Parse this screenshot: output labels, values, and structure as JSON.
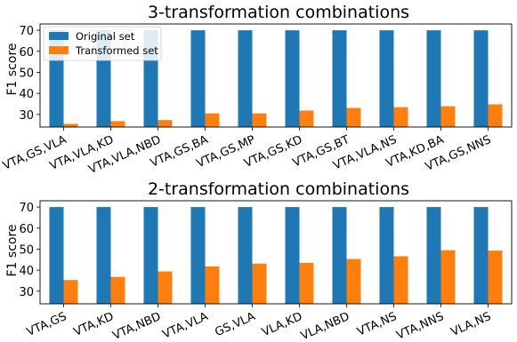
{
  "chart_data": [
    {
      "type": "bar",
      "title": "3-transformation combinations",
      "ylabel": "F1 score",
      "xlabel": "",
      "ylim": [
        24,
        73
      ],
      "yticks": [
        30,
        40,
        50,
        60,
        70
      ],
      "categories": [
        "VTA,GS,VLA",
        "VTA,VLA,KD",
        "VTA,VLA,NBD",
        "VTA,GS,BA",
        "VTA,GS,MP",
        "VTA,GS,KD",
        "VTA,GS,BT",
        "VTA,VLA,NS",
        "VTA,KD,BA",
        "VTA,GS,NNS"
      ],
      "series": [
        {
          "name": "Original set",
          "color": "#1f77b4",
          "values": [
            70,
            70,
            70,
            70,
            70,
            70,
            70,
            70,
            70,
            70
          ]
        },
        {
          "name": "Transformed set",
          "color": "#ff7f0e",
          "values": [
            25.5,
            26.8,
            27.3,
            30.5,
            30.5,
            31.8,
            33.1,
            33.4,
            33.9,
            34.8
          ]
        }
      ],
      "legend": {
        "position": "top-left",
        "entries": [
          "Original set",
          "Transformed set"
        ]
      },
      "grid": false
    },
    {
      "type": "bar",
      "title": "2-transformation combinations",
      "ylabel": "F1 score",
      "xlabel": "",
      "ylim": [
        24,
        73
      ],
      "yticks": [
        30,
        40,
        50,
        60,
        70
      ],
      "categories": [
        "VTA,GS",
        "VTA,KD",
        "VTA,NBD",
        "VTA,VLA",
        "GS,VLA",
        "VLA,KD",
        "VLA,NBD",
        "VTA,NS",
        "VTA,NNS",
        "VLA,NS"
      ],
      "series": [
        {
          "name": "Original set",
          "color": "#1f77b4",
          "values": [
            70,
            70,
            70,
            70,
            70,
            70,
            70,
            70,
            70,
            70
          ]
        },
        {
          "name": "Transformed set",
          "color": "#ff7f0e",
          "values": [
            35.3,
            36.8,
            39.4,
            41.8,
            43.1,
            43.5,
            45.3,
            46.6,
            49.5,
            49.3
          ]
        }
      ],
      "legend": {
        "position": "none",
        "entries": []
      },
      "grid": false
    }
  ]
}
